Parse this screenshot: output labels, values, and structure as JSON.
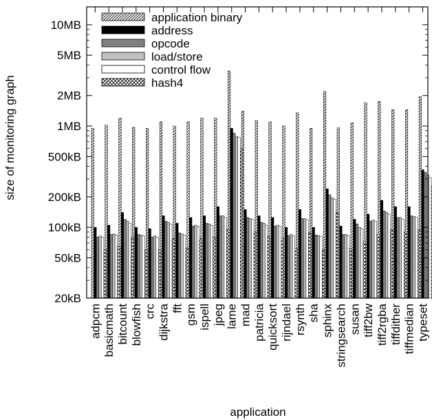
{
  "chart_data": {
    "type": "bar",
    "yscale": "log",
    "ylim": [
      "20kB",
      "15MB"
    ],
    "xlabel": "application",
    "ylabel": "size of monitoring graph",
    "yticks": [
      {
        "label": "20kB",
        "value": 20000
      },
      {
        "label": "50kB",
        "value": 50000
      },
      {
        "label": "100kB",
        "value": 100000
      },
      {
        "label": "200kB",
        "value": 200000
      },
      {
        "label": "500kB",
        "value": 500000
      },
      {
        "label": "1MB",
        "value": 1000000
      },
      {
        "label": "2MB",
        "value": 2000000
      },
      {
        "label": "5MB",
        "value": 5000000
      },
      {
        "label": "10MB",
        "value": 10000000
      }
    ],
    "legend_position": "top-left",
    "categories": [
      "adpcm",
      "basicmath",
      "bitcount",
      "blowfish",
      "crc",
      "dijkstra",
      "fft",
      "gsm",
      "ispell",
      "jpeg",
      "lame",
      "mad",
      "patricia",
      "quicksort",
      "rijndael",
      "rsynth",
      "sha",
      "sphinx",
      "stringsearch",
      "susan",
      "tiff2bw",
      "tiff2rgba",
      "tiffdither",
      "tiffmedian",
      "typeset"
    ],
    "series": [
      {
        "name": "application binary",
        "fill": "diag",
        "values": [
          950000,
          1020000,
          1200000,
          970000,
          950000,
          1100000,
          1000000,
          1100000,
          1200000,
          1200000,
          3500000,
          1400000,
          1130000,
          1100000,
          1000000,
          1350000,
          950000,
          2200000,
          960000,
          1080000,
          1700000,
          1750000,
          1450000,
          1450000,
          1950000
        ]
      },
      {
        "name": "address",
        "fill": "#000000",
        "values": [
          100000,
          105000,
          140000,
          100000,
          97000,
          130000,
          110000,
          125000,
          130000,
          160000,
          950000,
          150000,
          130000,
          125000,
          100000,
          150000,
          100000,
          240000,
          103000,
          120000,
          135000,
          185000,
          160000,
          160000,
          370000
        ]
      },
      {
        "name": "opcode",
        "fill": "#808080",
        "values": [
          80000,
          85000,
          120000,
          85000,
          80000,
          115000,
          88000,
          103000,
          110000,
          130000,
          850000,
          125000,
          112000,
          103000,
          83000,
          122000,
          84000,
          210000,
          85000,
          108000,
          115000,
          145000,
          125000,
          130000,
          350000
        ]
      },
      {
        "name": "load/store",
        "fill": "#c0c0c0",
        "values": [
          82000,
          86000,
          115000,
          84000,
          82000,
          112000,
          86000,
          105000,
          108000,
          130000,
          790000,
          122000,
          110000,
          105000,
          85000,
          122000,
          83000,
          195000,
          85000,
          100000,
          118000,
          140000,
          125000,
          128000,
          330000
        ]
      },
      {
        "name": "control flow",
        "fill": "#ffffff",
        "values": [
          80000,
          84000,
          110000,
          82000,
          80000,
          108000,
          84000,
          102000,
          104000,
          125000,
          770000,
          120000,
          105000,
          102000,
          82000,
          118000,
          81000,
          190000,
          83000,
          97000,
          115000,
          135000,
          120000,
          125000,
          310000
        ]
      },
      {
        "name": "hash4",
        "fill": "cross",
        "values": [
          60000,
          65000,
          80000,
          60000,
          60000,
          78000,
          62000,
          78000,
          80000,
          95000,
          600000,
          90000,
          82000,
          78000,
          62000,
          88000,
          60000,
          140000,
          62000,
          72000,
          85000,
          95000,
          90000,
          95000,
          260000
        ]
      }
    ]
  }
}
